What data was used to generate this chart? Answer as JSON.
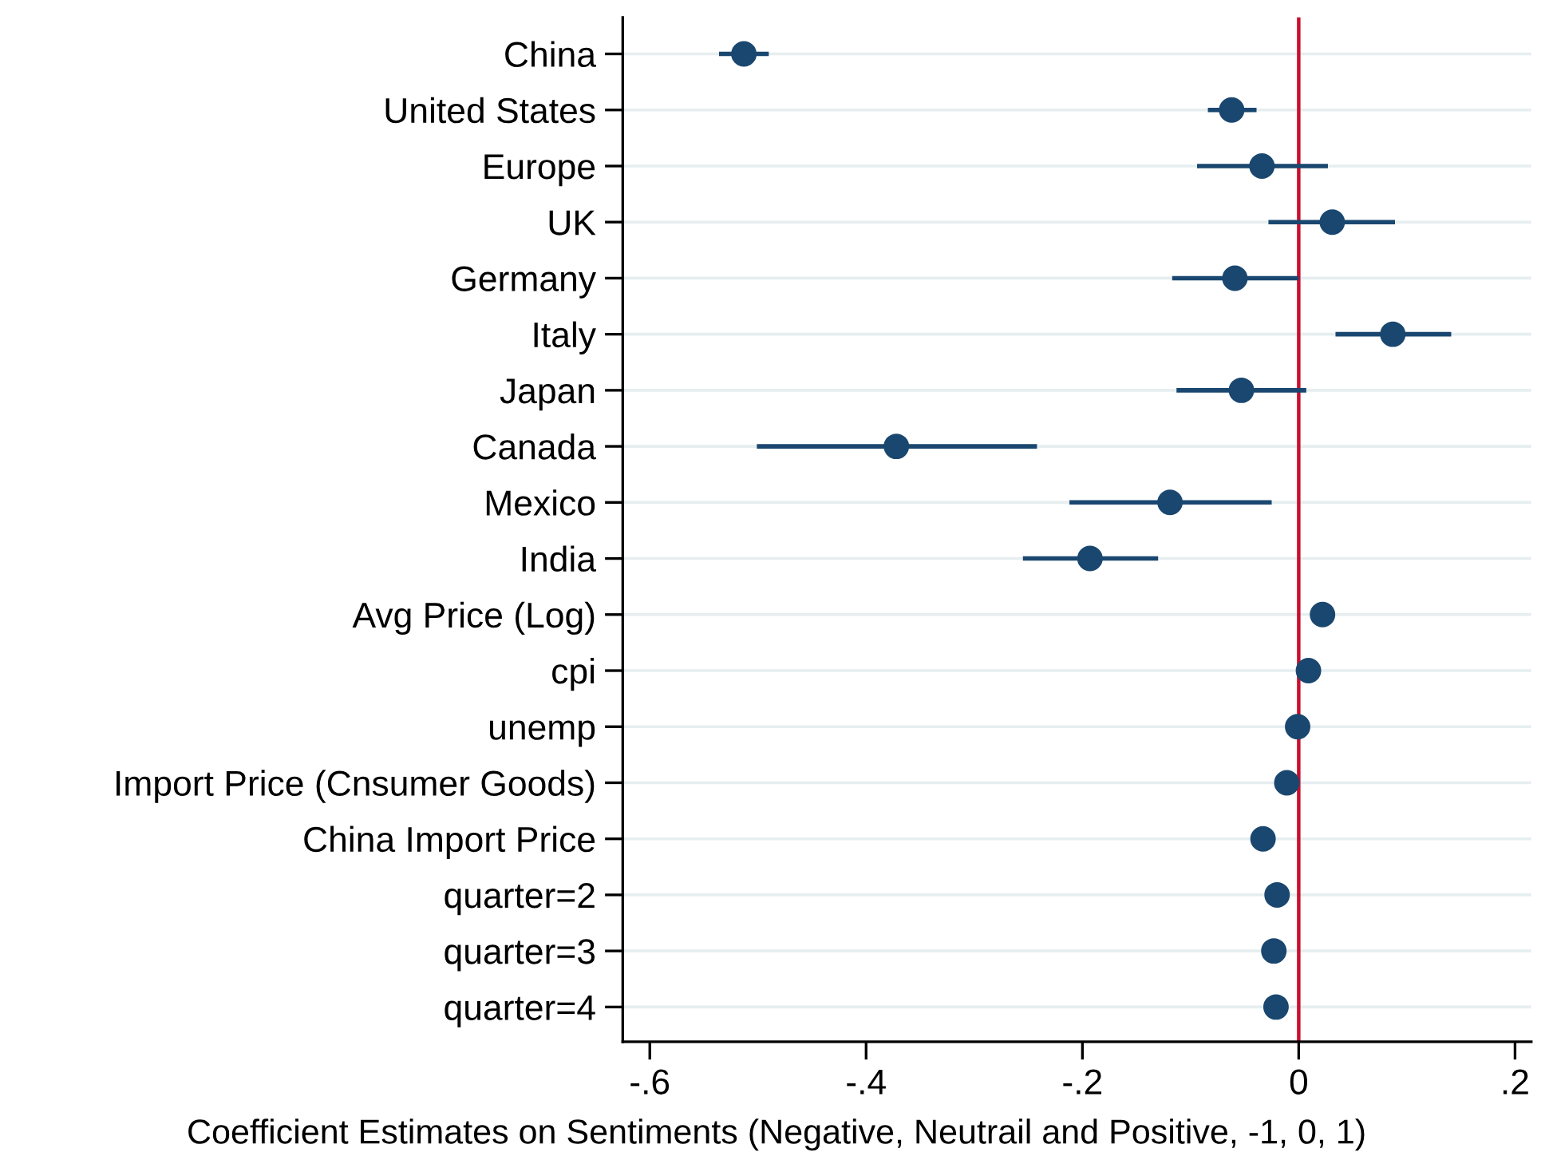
{
  "chart_data": {
    "type": "scatter",
    "orientation": "horizontal",
    "xlabel": "Coefficient Estimates on Sentiments (Negative, Neutrail and Positive, -1, 0, 1)",
    "categories": [
      "China",
      "United States",
      "Europe",
      "UK",
      "Germany",
      "Italy",
      "Japan",
      "Canada",
      "Mexico",
      "India",
      "Avg Price (Log)",
      "cpi",
      "unemp",
      "Import Price (Cnsumer Goods)",
      "China Import Price",
      "quarter=2",
      "quarter=3",
      "quarter=4"
    ],
    "series": [
      {
        "color": "#1a476f",
        "values": [
          -0.513,
          -0.062,
          -0.034,
          0.031,
          -0.059,
          0.087,
          -0.053,
          -0.372,
          -0.119,
          -0.193,
          0.022,
          0.009,
          -0.001,
          -0.011,
          -0.033,
          -0.02,
          -0.023,
          -0.021
        ],
        "errors": [
          [
            -0.536,
            -0.49
          ],
          [
            -0.084,
            -0.039
          ],
          [
            -0.094,
            0.027
          ],
          [
            -0.028,
            0.089
          ],
          [
            -0.117,
            0.0
          ],
          [
            0.034,
            0.141
          ],
          [
            -0.113,
            0.007
          ],
          [
            -0.501,
            -0.242
          ],
          [
            -0.212,
            -0.025
          ],
          [
            -0.255,
            -0.13
          ],
          null,
          null,
          null,
          null,
          null,
          null,
          null,
          null
        ]
      }
    ],
    "xlim": [
      -0.625,
      0.215
    ],
    "xticks": [
      {
        "value": -0.6,
        "label": "-.6"
      },
      {
        "value": -0.4,
        "label": "-.4"
      },
      {
        "value": -0.2,
        "label": "-.2"
      },
      0,
      {
        "value": 0.2,
        "label": ".2"
      }
    ],
    "ref_lines": [
      {
        "axis": "x",
        "value": 0,
        "color": "#c8102e"
      }
    ],
    "grid": "y",
    "marker": "circle",
    "legend": false
  }
}
